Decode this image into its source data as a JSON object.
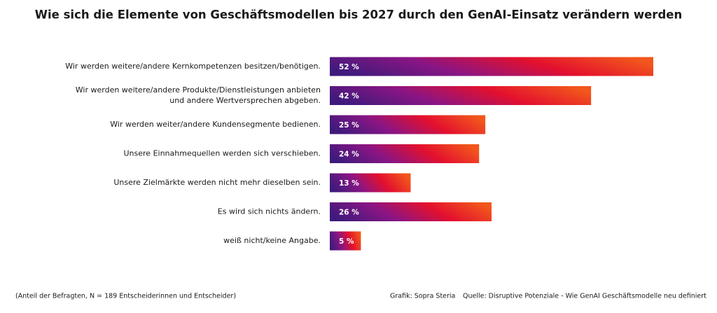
{
  "chart_data": {
    "type": "bar",
    "orientation": "horizontal",
    "title": "Wie sich die Elemente von Geschäftsmodellen bis 2027 durch den GenAI-Einsatz verändern werden",
    "categories": [
      "Wir werden weitere/andere Kernkompetenzen besitzen/benötigen.",
      "Wir werden weitere/andere Produkte/Dienstleistungen anbieten\nund andere Wertversprechen abgeben.",
      "Wir werden weiter/andere Kundensegmente bedienen.",
      "Unsere Einnahmequellen werden sich verschieben.",
      "Unsere Zielmärkte werden nicht mehr dieselben sein.",
      "Es wird sich nichts ändern.",
      "weiß nicht/keine Angabe."
    ],
    "values": [
      52,
      42,
      25,
      24,
      13,
      26,
      5
    ],
    "value_labels": [
      "52 %",
      "42 %",
      "25 %",
      "24 %",
      "13 %",
      "26 %",
      "5 %"
    ],
    "colors": [
      "#3f1a7c",
      "#8a1584",
      "#e3102e",
      "#f2561c"
    ],
    "note": "(Anteil der Befragten, N = 189 Entscheiderinnen und Entscheider)",
    "credit": "Grafik: Sopra Steria",
    "source": "Quelle: Disruptive Potenziale - Wie GenAI Geschäftsmodelle neu definiert"
  }
}
